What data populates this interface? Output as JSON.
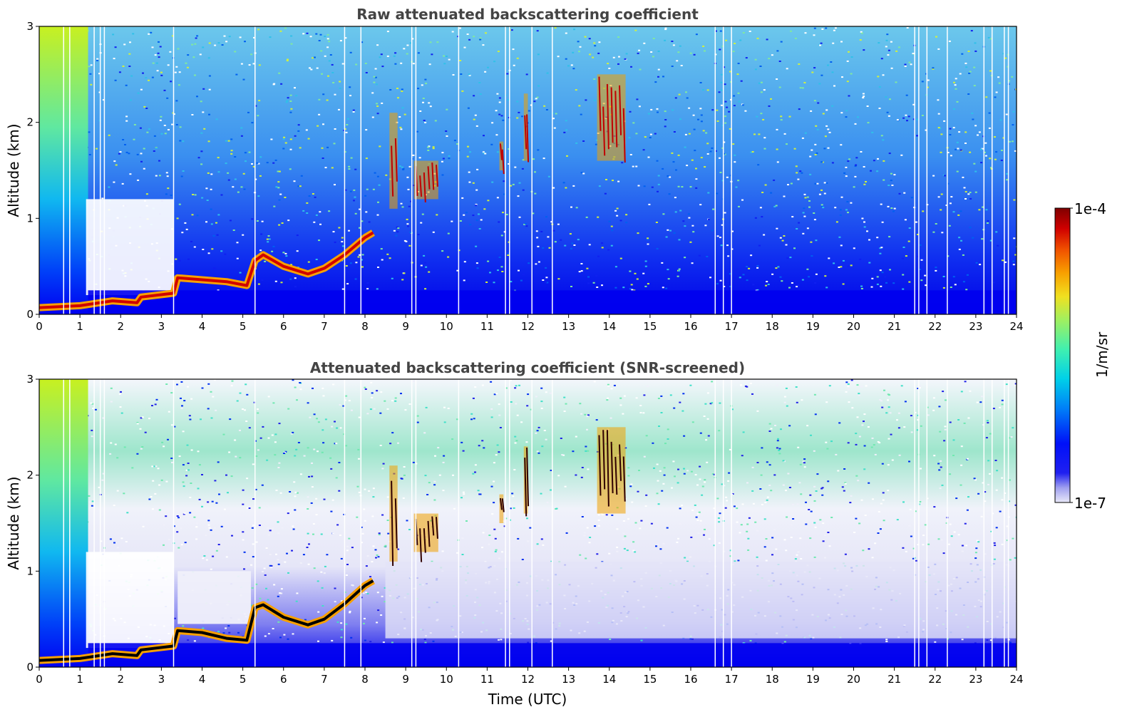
{
  "chart_data": [
    {
      "type": "heatmap",
      "title": "Raw attenuated backscattering coefficient",
      "xlabel": "",
      "ylabel": "Altitude (km)",
      "xlim": [
        0,
        24
      ],
      "ylim": [
        0,
        3
      ],
      "x_ticks": [
        0,
        1,
        2,
        3,
        4,
        5,
        6,
        7,
        8,
        9,
        10,
        11,
        12,
        13,
        14,
        15,
        16,
        17,
        18,
        19,
        20,
        21,
        22,
        23,
        24
      ],
      "y_ticks": [
        0,
        1,
        2
      ],
      "y_tick_top": 3,
      "screened": false,
      "boundary_layer_top_km": [
        [
          0.0,
          0.07
        ],
        [
          1.0,
          0.09
        ],
        [
          1.8,
          0.14
        ],
        [
          2.4,
          0.12
        ],
        [
          2.5,
          0.18
        ],
        [
          3.3,
          0.22
        ],
        [
          3.4,
          0.38
        ],
        [
          4.0,
          0.36
        ],
        [
          4.6,
          0.34
        ],
        [
          5.1,
          0.3
        ],
        [
          5.3,
          0.56
        ],
        [
          5.5,
          0.62
        ],
        [
          6.0,
          0.5
        ],
        [
          6.6,
          0.42
        ],
        [
          7.0,
          0.48
        ],
        [
          7.5,
          0.62
        ],
        [
          8.0,
          0.8
        ],
        [
          8.2,
          0.85
        ]
      ],
      "cloud_features": [
        {
          "x": [
            8.6,
            8.8
          ],
          "y": [
            1.1,
            2.1
          ]
        },
        {
          "x": [
            9.2,
            9.8
          ],
          "y": [
            1.2,
            1.6
          ]
        },
        {
          "x": [
            11.3,
            11.4
          ],
          "y": [
            1.5,
            1.8
          ]
        },
        {
          "x": [
            11.9,
            12.0
          ],
          "y": [
            1.6,
            2.3
          ]
        },
        {
          "x": [
            13.7,
            14.4
          ],
          "y": [
            1.6,
            2.5
          ]
        }
      ]
    },
    {
      "type": "heatmap",
      "title": "Attenuated backscattering coefficient (SNR-screened)",
      "xlabel": "Time (UTC)",
      "ylabel": "Altitude (km)",
      "xlim": [
        0,
        24
      ],
      "ylim": [
        0,
        3
      ],
      "x_ticks": [
        0,
        1,
        2,
        3,
        4,
        5,
        6,
        7,
        8,
        9,
        10,
        11,
        12,
        13,
        14,
        15,
        16,
        17,
        18,
        19,
        20,
        21,
        22,
        23,
        24
      ],
      "y_ticks": [
        0,
        1,
        2
      ],
      "y_tick_top": 3,
      "screened": true,
      "boundary_layer_top_km": [
        [
          0.0,
          0.07
        ],
        [
          1.0,
          0.09
        ],
        [
          1.8,
          0.14
        ],
        [
          2.4,
          0.12
        ],
        [
          2.5,
          0.18
        ],
        [
          3.3,
          0.22
        ],
        [
          3.4,
          0.38
        ],
        [
          4.0,
          0.36
        ],
        [
          4.6,
          0.3
        ],
        [
          5.1,
          0.28
        ],
        [
          5.3,
          0.62
        ],
        [
          5.5,
          0.65
        ],
        [
          6.0,
          0.52
        ],
        [
          6.6,
          0.44
        ],
        [
          7.0,
          0.5
        ],
        [
          7.5,
          0.66
        ],
        [
          8.0,
          0.85
        ],
        [
          8.2,
          0.9
        ]
      ],
      "cloud_features": [
        {
          "x": [
            8.6,
            8.8
          ],
          "y": [
            1.1,
            2.1
          ]
        },
        {
          "x": [
            9.2,
            9.8
          ],
          "y": [
            1.2,
            1.6
          ]
        },
        {
          "x": [
            11.3,
            11.4
          ],
          "y": [
            1.5,
            1.8
          ]
        },
        {
          "x": [
            11.9,
            12.0
          ],
          "y": [
            1.6,
            2.3
          ]
        },
        {
          "x": [
            13.7,
            14.4
          ],
          "y": [
            1.6,
            2.5
          ]
        }
      ]
    }
  ],
  "colorbar": {
    "label": "1/m/sr",
    "max_label": "1e-4",
    "min_label": "1e-7",
    "scale": "log",
    "range": [
      1e-07,
      0.0001
    ],
    "colors": [
      "#e8e8f8",
      "#c8c8f0",
      "#9898f0",
      "#4040f0",
      "#0000f0",
      "#0030f8",
      "#0078f8",
      "#00b8f0",
      "#10e0d0",
      "#50f0a0",
      "#a0f060",
      "#e0f030",
      "#f8d000",
      "#f89000",
      "#f04000",
      "#d00000",
      "#800000"
    ]
  }
}
